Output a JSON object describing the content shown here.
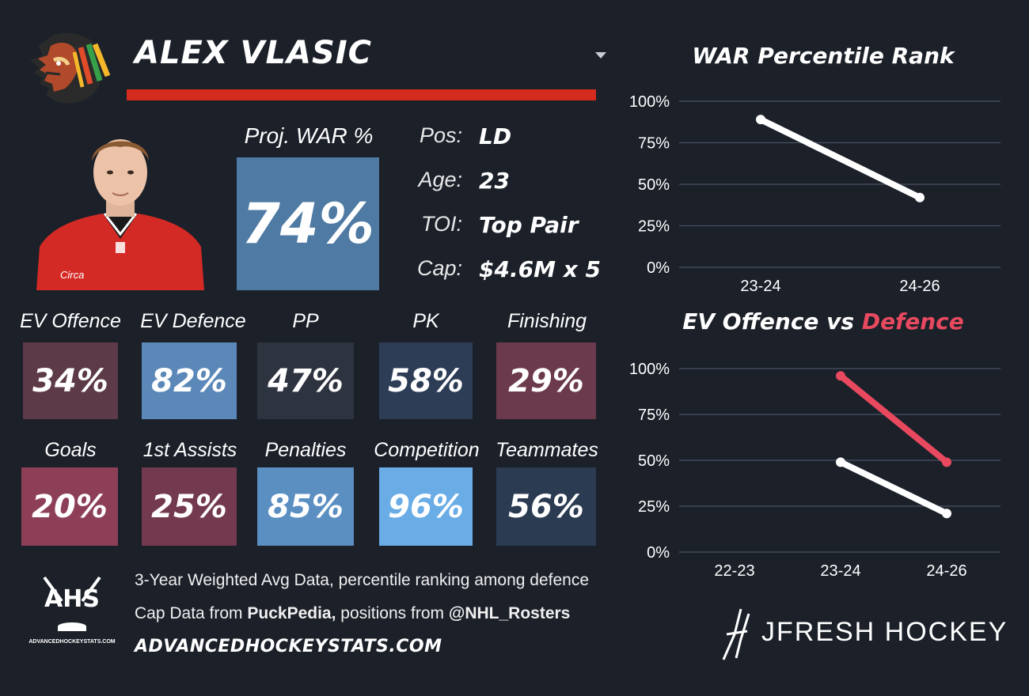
{
  "player": {
    "name": "ALEX VLASIC",
    "proj_war_label": "Proj. WAR %",
    "proj_war_value": "74%",
    "proj_war_color": "#4e7aa3",
    "info": [
      {
        "key": "Pos:",
        "value": "LD"
      },
      {
        "key": "Age:",
        "value": "23"
      },
      {
        "key": "TOI:",
        "value": "Top Pair"
      },
      {
        "key": "Cap:",
        "value": "$4.6M x 5"
      }
    ]
  },
  "tiles_row1": [
    {
      "label": "EV Offence",
      "value": "34%",
      "color": "#5c3a48"
    },
    {
      "label": "EV Defence",
      "value": "82%",
      "color": "#5b88b8"
    },
    {
      "label": "PP",
      "value": "47%",
      "color": "#2e3340"
    },
    {
      "label": "PK",
      "value": "58%",
      "color": "#2d3d55"
    },
    {
      "label": "Finishing",
      "value": "29%",
      "color": "#6b3a4d"
    }
  ],
  "tiles_row2": [
    {
      "label": "Goals",
      "value": "20%",
      "color": "#8d3f58"
    },
    {
      "label": "1st Assists",
      "value": "25%",
      "color": "#733a4f"
    },
    {
      "label": "Penalties",
      "value": "85%",
      "color": "#5b8fc2"
    },
    {
      "label": "Competition",
      "value": "96%",
      "color": "#6aace6"
    },
    {
      "label": "Teammates",
      "value": "56%",
      "color": "#2b3b52"
    }
  ],
  "footer": {
    "line1": "3-Year Weighted Avg Data, percentile ranking among defence",
    "line2_pre": "Cap Data from ",
    "line2_bold1": "PuckPedia,",
    "line2_mid": " positions from ",
    "line2_bold2": "@NHL_Rosters",
    "site": "ADVANCEDHOCKEYSTATS.COM",
    "ahs_logo_text": "AHS",
    "ahs_logo_sub": "ADVANCEDHOCKEYSTATS.COM",
    "brand": "JFRESH HOCKEY"
  },
  "chart_data": [
    {
      "type": "line",
      "title": "WAR Percentile Rank",
      "categories": [
        "23-24",
        "24-26"
      ],
      "ylim": [
        0,
        100
      ],
      "yticks": [
        "0%",
        "25%",
        "50%",
        "75%",
        "100%"
      ],
      "series": [
        {
          "values": [
            89,
            42
          ],
          "color": "#ffffff"
        }
      ]
    },
    {
      "type": "line",
      "title_part1": "EV Offence vs ",
      "title_part2": "Defence",
      "title_part2_color": "#e8495f",
      "categories": [
        "22-23",
        "23-24",
        "24-26"
      ],
      "ylim": [
        0,
        100
      ],
      "yticks": [
        "0%",
        "25%",
        "50%",
        "75%",
        "100%"
      ],
      "series": [
        {
          "values": [
            null,
            49,
            21
          ],
          "color": "#ffffff"
        },
        {
          "values": [
            null,
            96,
            49
          ],
          "color": "#e8495f"
        }
      ]
    }
  ]
}
